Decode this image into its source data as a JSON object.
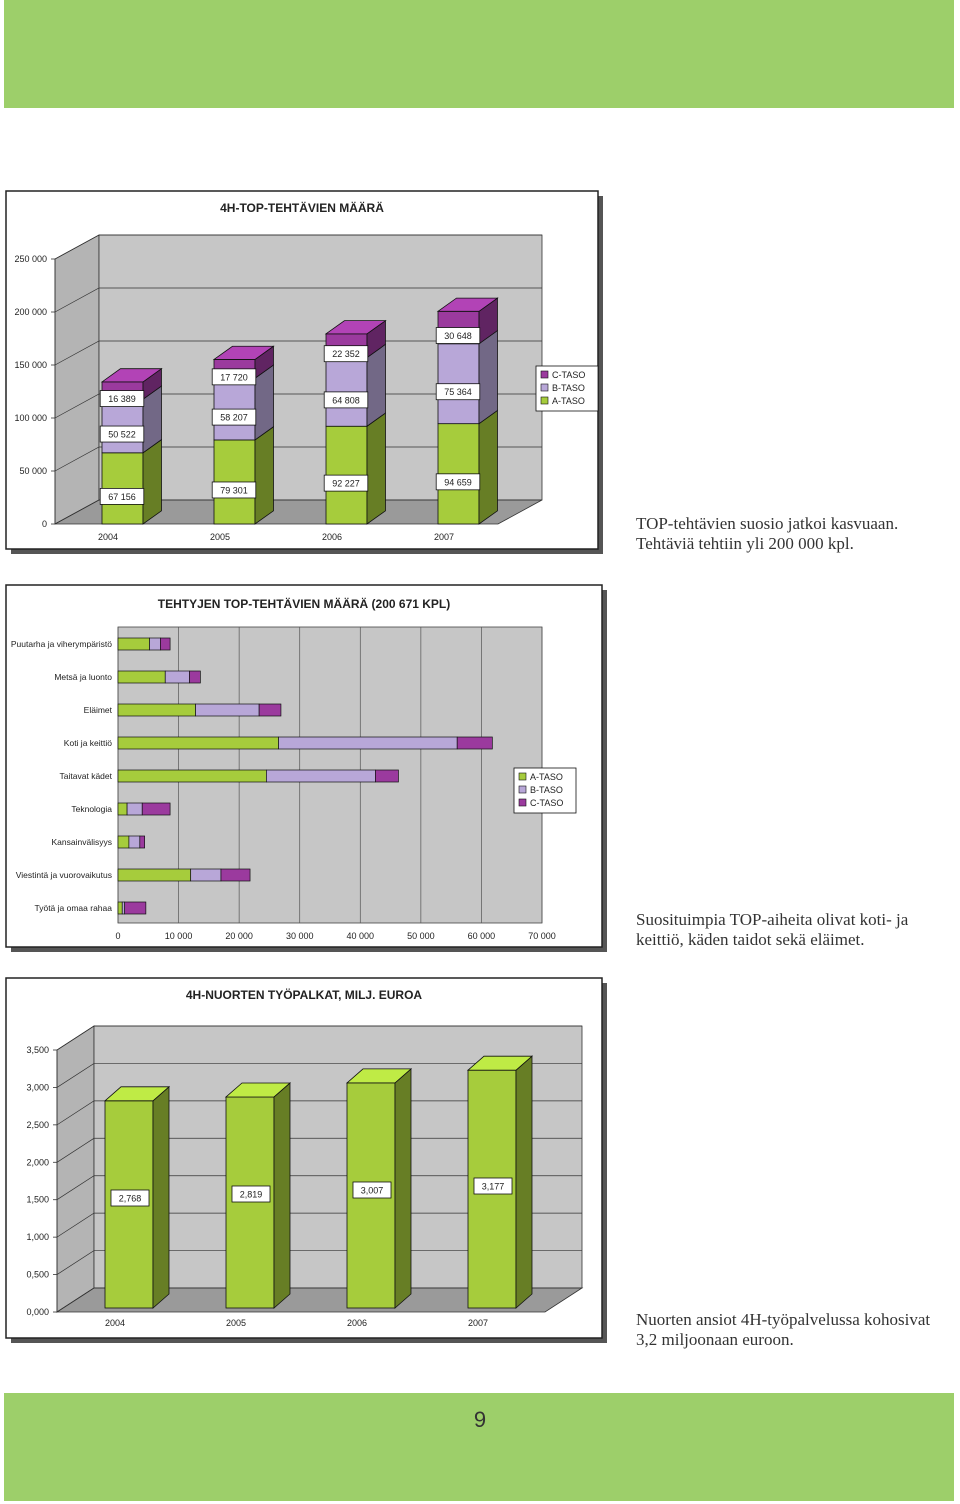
{
  "colors": {
    "band": "#9dcf6a",
    "a_taso": "#a6cc3c",
    "b_taso": "#b8a7d8",
    "c_taso": "#9b3a9e",
    "plot_bg": "#c6c6c6",
    "frame_shadow": "#555555"
  },
  "page_number": "9",
  "captions": {
    "chart1": [
      "TOP-tehtävien suosio jatkoi kasvuaan.",
      "Tehtäviä tehtiin yli 200 000 kpl."
    ],
    "chart2": [
      "Suosituimpia TOP-aiheita olivat koti- ja",
      "keittiö, käden taidot sekä eläimet."
    ],
    "chart3": [
      "Nuorten ansiot 4H-työpalvelussa kohosivat",
      "3,2 miljoonaan euroon."
    ]
  },
  "chart_data": [
    {
      "type": "bar",
      "stacked": true,
      "three_d": true,
      "title": "4H-TOP-TEHTÄVIEN MÄÄRÄ",
      "categories": [
        "2004",
        "2005",
        "2006",
        "2007"
      ],
      "series": [
        {
          "name": "A-TASO",
          "values": [
            67156,
            79301,
            92227,
            94659
          ],
          "labels": [
            "67 156",
            "79 301",
            "92 227",
            "94 659"
          ]
        },
        {
          "name": "B-TASO",
          "values": [
            50522,
            58207,
            64808,
            75364
          ],
          "labels": [
            "50 522",
            "58 207",
            "64 808",
            "75 364"
          ]
        },
        {
          "name": "C-TASO",
          "values": [
            16389,
            17720,
            22352,
            30648
          ],
          "labels": [
            "16 389",
            "17 720",
            "22 352",
            "30 648"
          ]
        }
      ],
      "ylim": [
        0,
        250000
      ],
      "yticks": [
        0,
        50000,
        100000,
        150000,
        200000,
        250000
      ],
      "ytick_labels": [
        "0",
        "50 000",
        "100 000",
        "150 000",
        "200 000",
        "250 000"
      ],
      "legend": [
        "C-TASO",
        "B-TASO",
        "A-TASO"
      ],
      "legend_position": "right"
    },
    {
      "type": "bar",
      "orientation": "horizontal",
      "stacked": true,
      "title": "TEHTYJEN TOP-TEHTÄVIEN MÄÄRÄ (200 671 KPL)",
      "categories": [
        "Puutarha ja viherympäristö",
        "Metsä ja luonto",
        "Eläimet",
        "Koti ja keittiö",
        "Taitavat kädet",
        "Teknologia",
        "Kansainvälisyys",
        "Viestintä ja vuorovaikutus",
        "Työtä ja omaa rahaa"
      ],
      "series": [
        {
          "name": "A-TASO",
          "values": [
            5200,
            7800,
            12800,
            26500,
            24500,
            1500,
            1800,
            12000,
            700
          ]
        },
        {
          "name": "B-TASO",
          "values": [
            1800,
            4000,
            10500,
            29500,
            18000,
            2500,
            1800,
            5000,
            400
          ]
        },
        {
          "name": "C-TASO",
          "values": [
            1600,
            1800,
            3600,
            5800,
            3800,
            4600,
            800,
            4800,
            3500
          ]
        }
      ],
      "xlim": [
        0,
        70000
      ],
      "xticks": [
        0,
        10000,
        20000,
        30000,
        40000,
        50000,
        60000,
        70000
      ],
      "xtick_labels": [
        "0",
        "10 000",
        "20 000",
        "30 000",
        "40 000",
        "50 000",
        "60 000",
        "70 000"
      ],
      "legend": [
        "A-TASO",
        "B-TASO",
        "C-TASO"
      ],
      "legend_position": "right"
    },
    {
      "type": "bar",
      "three_d": true,
      "title": "4H-NUORTEN TYÖPALKAT, MILJ. EUROA",
      "categories": [
        "2004",
        "2005",
        "2006",
        "2007"
      ],
      "values": [
        2.768,
        2.819,
        3.007,
        3.177
      ],
      "value_labels": [
        "2,768",
        "2,819",
        "3,007",
        "3,177"
      ],
      "ylim": [
        0,
        3.5
      ],
      "yticks": [
        0,
        0.5,
        1,
        1.5,
        2,
        2.5,
        3,
        3.5
      ],
      "ytick_labels": [
        "0,000",
        "0,500",
        "1,000",
        "1,500",
        "2,000",
        "2,500",
        "3,000",
        "3,500"
      ]
    }
  ]
}
